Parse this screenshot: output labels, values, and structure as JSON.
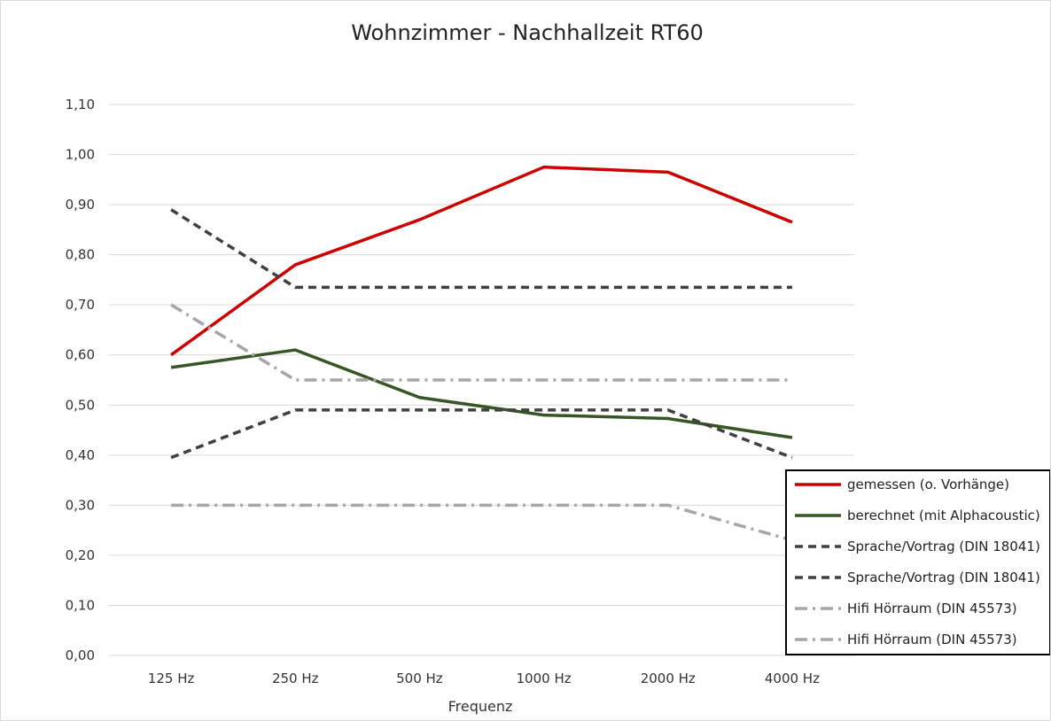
{
  "chart_data": {
    "type": "line",
    "title": "Wohnzimmer - Nachhallzeit RT60",
    "xlabel": "Frequenz",
    "ylabel": "",
    "categories": [
      "125 Hz",
      "250 Hz",
      "500 Hz",
      "1000 Hz",
      "2000 Hz",
      "4000 Hz"
    ],
    "ylim": [
      0,
      1.1
    ],
    "yticks": [
      "0,00",
      "0,10",
      "0,20",
      "0,30",
      "0,40",
      "0,50",
      "0,60",
      "0,70",
      "0,80",
      "0,90",
      "1,00",
      "1,10"
    ],
    "grid": true,
    "legend_position": "bottom-right",
    "series": [
      {
        "name": "gemessen (o. Vorhänge)",
        "values": [
          0.6,
          0.78,
          0.87,
          0.975,
          0.965,
          0.865
        ],
        "color": "#cc0000",
        "style": "solid"
      },
      {
        "name": "berechnet (mit Alphacoustic)",
        "values": [
          0.575,
          0.61,
          0.515,
          0.48,
          0.473,
          0.435
        ],
        "color": "#375623",
        "style": "solid"
      },
      {
        "name": "Sprache/Vortrag (DIN 18041)",
        "values": [
          0.89,
          0.735,
          0.735,
          0.735,
          0.735,
          0.735
        ],
        "color": "#404040",
        "style": "dash"
      },
      {
        "name": "Sprache/Vortrag (DIN 18041)",
        "values": [
          0.395,
          0.49,
          0.49,
          0.49,
          0.49,
          0.395
        ],
        "color": "#404040",
        "style": "dash"
      },
      {
        "name": "Hifi Hörraum (DIN 45573)",
        "values": [
          0.7,
          0.55,
          0.55,
          0.55,
          0.55,
          0.55
        ],
        "color": "#a6a6a6",
        "style": "dashdot"
      },
      {
        "name": "Hifi Hörraum (DIN 45573)",
        "values": [
          0.3,
          0.3,
          0.3,
          0.3,
          0.3,
          0.23
        ],
        "color": "#a6a6a6",
        "style": "dashdot"
      }
    ]
  }
}
